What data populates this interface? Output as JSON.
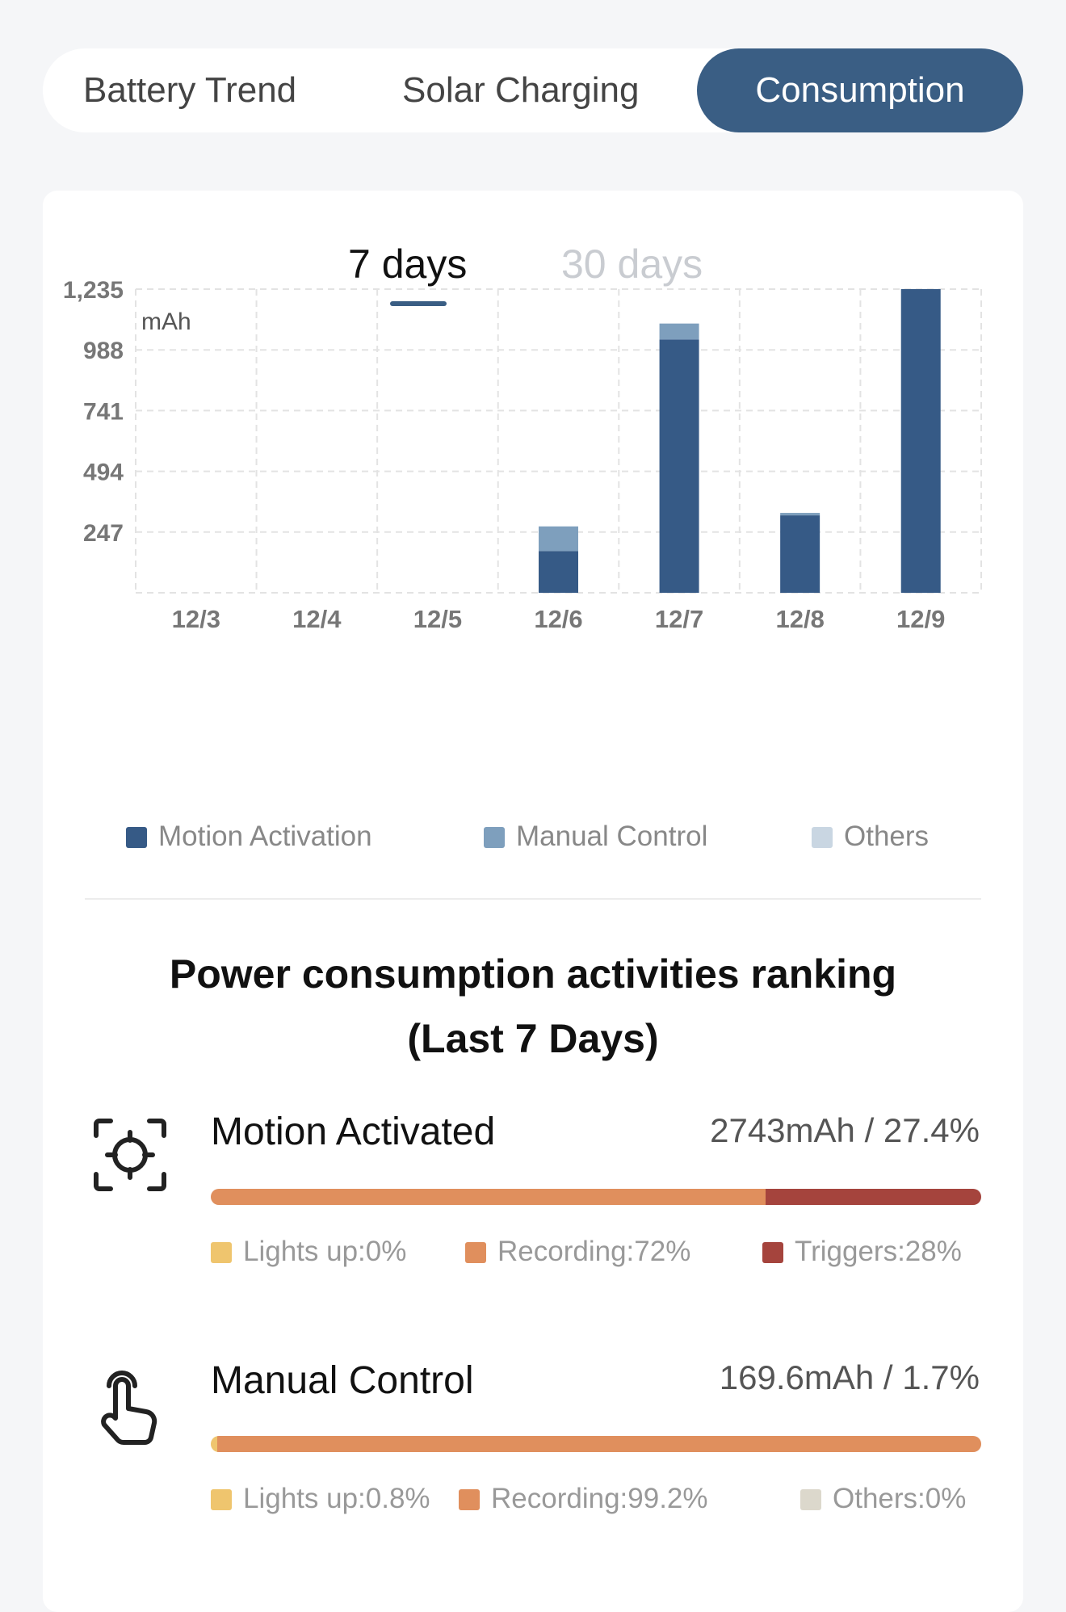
{
  "tabs": [
    {
      "label": "Battery Trend"
    },
    {
      "label": "Solar Charging"
    },
    {
      "label": "Consumption"
    }
  ],
  "period_tabs": {
    "active": "7 days",
    "inactive": "30 days"
  },
  "chart_data": {
    "type": "bar",
    "stacked": true,
    "ylabel": "mAh",
    "yticks": [
      247,
      494,
      741,
      988,
      1235
    ],
    "ytick_labels": [
      "247",
      "494",
      "741",
      "988",
      "1,235"
    ],
    "ylim": [
      0,
      1235
    ],
    "categories": [
      "12/3",
      "12/4",
      "12/5",
      "12/6",
      "12/7",
      "12/8",
      "12/9"
    ],
    "series": [
      {
        "name": "Motion Activation",
        "color": "#365a86",
        "values": [
          0,
          0,
          0,
          170,
          1030,
          315,
          1235
        ]
      },
      {
        "name": "Manual Control",
        "color": "#7e9fbd",
        "values": [
          0,
          0,
          0,
          100,
          65,
          10,
          0
        ]
      },
      {
        "name": "Others",
        "color": "#c9d6e2",
        "values": [
          0,
          0,
          0,
          0,
          0,
          0,
          0
        ]
      }
    ],
    "grid": true
  },
  "ranking": {
    "title_line1": "Power consumption activities ranking",
    "title_line2": "(Last 7 Days)",
    "items": [
      {
        "name": "Motion Activated",
        "value": "2743mAh / 27.4%",
        "icon": "motion-target-icon",
        "segments": [
          {
            "label": "Lights up:0%",
            "percent": 0,
            "color": "#efc56e"
          },
          {
            "label": "Recording:72%",
            "percent": 72,
            "color": "#e08f5d"
          },
          {
            "label": "Triggers:28%",
            "percent": 28,
            "color": "#a5443d"
          }
        ]
      },
      {
        "name": "Manual Control",
        "value": "169.6mAh / 1.7%",
        "icon": "hand-tap-icon",
        "segments": [
          {
            "label": "Lights up:0.8%",
            "percent": 0.8,
            "color": "#efc56e"
          },
          {
            "label": "Recording:99.2%",
            "percent": 99.2,
            "color": "#e08f5d"
          },
          {
            "label": "Others:0%",
            "percent": 0,
            "color": "#dcd8cc"
          }
        ]
      }
    ]
  }
}
